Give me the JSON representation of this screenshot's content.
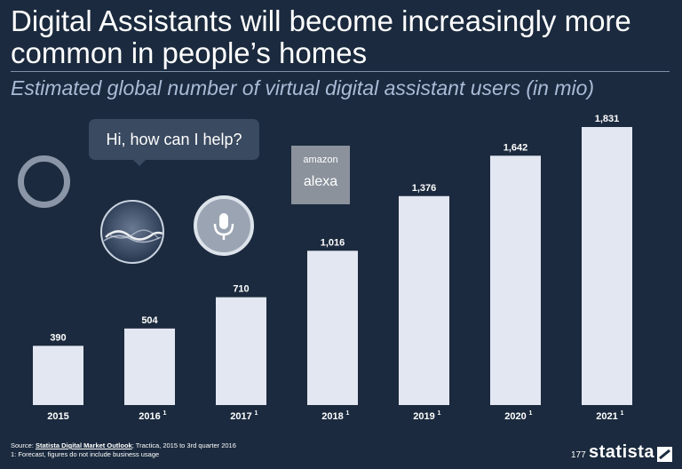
{
  "title": "Digital Assistants will become increasingly more common in people’s homes",
  "subtitle": "Estimated global number of virtual digital assistant users (in mio)",
  "speech_bubble": "Hi, how can I help?",
  "alexa_logo": {
    "line1": "amazon",
    "line2": "alexa"
  },
  "colors": {
    "background": "#1b2a3e",
    "bar": "#e3e7f1",
    "subtitle": "#a9bbd6"
  },
  "chart_data": {
    "type": "bar",
    "title": "Estimated global number of virtual digital assistant users (in mio)",
    "categories": [
      "2015",
      "2016",
      "2017",
      "2018",
      "2019",
      "2020",
      "2021"
    ],
    "footnote_marks": [
      "",
      "1",
      "1",
      "1",
      "1",
      "1",
      "1"
    ],
    "values": [
      390,
      504,
      710,
      1016,
      1376,
      1642,
      1831
    ],
    "value_labels": [
      "390",
      "504",
      "710",
      "1,016",
      "1,376",
      "1,642",
      "1,831"
    ],
    "xlabel": "",
    "ylabel": "",
    "ylim": [
      0,
      1831
    ],
    "grid": false
  },
  "footer": {
    "source_label": "Source:",
    "source_link": "Statista Digital Market Outlook",
    "source_rest": "; Tractica, 2015 to 3rd quarter 2016",
    "footnote": "1: Forecast, figures do not include business usage",
    "page_number": "177",
    "brand": "statista"
  }
}
